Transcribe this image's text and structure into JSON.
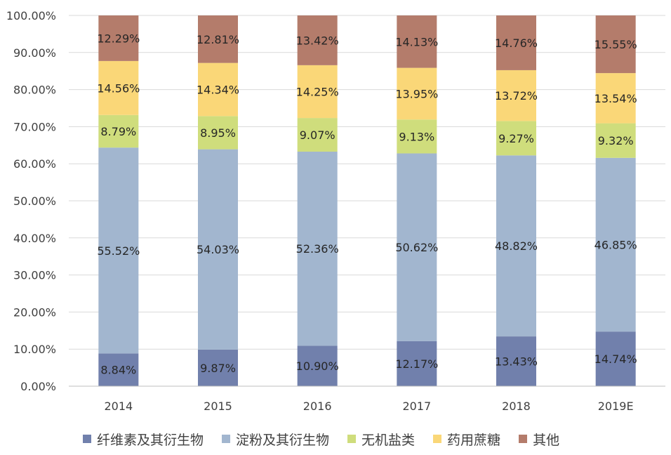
{
  "chart_data": {
    "type": "bar",
    "stacked": true,
    "percent": true,
    "categories": [
      "2014",
      "2015",
      "2016",
      "2017",
      "2018",
      "2019E"
    ],
    "series": [
      {
        "name": "纤维素及其衍生物",
        "color": "#7180ac",
        "values": [
          8.84,
          9.87,
          10.9,
          12.17,
          13.43,
          14.74
        ],
        "labels": [
          "8.84%",
          "9.87%",
          "10.90%",
          "12.17%",
          "13.43%",
          "14.74%"
        ]
      },
      {
        "name": "淀粉及其衍生物",
        "color": "#a2b6cf",
        "values": [
          55.52,
          54.03,
          52.36,
          50.62,
          48.82,
          46.85
        ],
        "labels": [
          "55.52%",
          "54.03%",
          "52.36%",
          "50.62%",
          "48.82%",
          "46.85%"
        ]
      },
      {
        "name": "无机盐类",
        "color": "#cfdd7c",
        "values": [
          8.79,
          8.95,
          9.07,
          9.13,
          9.27,
          9.32
        ],
        "labels": [
          "8.79%",
          "8.95%",
          "9.07%",
          "9.13%",
          "9.27%",
          "9.32%"
        ]
      },
      {
        "name": "药用蔗糖",
        "color": "#fad778",
        "values": [
          14.56,
          14.34,
          14.25,
          13.95,
          13.72,
          13.54
        ],
        "labels": [
          "14.56%",
          "14.34%",
          "14.25%",
          "13.95%",
          "13.72%",
          "13.54%"
        ]
      },
      {
        "name": "其他",
        "color": "#b47c6b",
        "values": [
          12.29,
          12.81,
          13.42,
          14.13,
          14.76,
          15.55
        ],
        "labels": [
          "12.29%",
          "12.81%",
          "13.42%",
          "14.13%",
          "14.76%",
          "15.55%"
        ]
      }
    ],
    "yticks": [
      "0.00%",
      "10.00%",
      "20.00%",
      "30.00%",
      "40.00%",
      "50.00%",
      "60.00%",
      "70.00%",
      "80.00%",
      "90.00%",
      "100.00%"
    ],
    "ylim": [
      0,
      100
    ],
    "grid": true,
    "legend_position": "bottom",
    "title": "",
    "xlabel": "",
    "ylabel": ""
  }
}
